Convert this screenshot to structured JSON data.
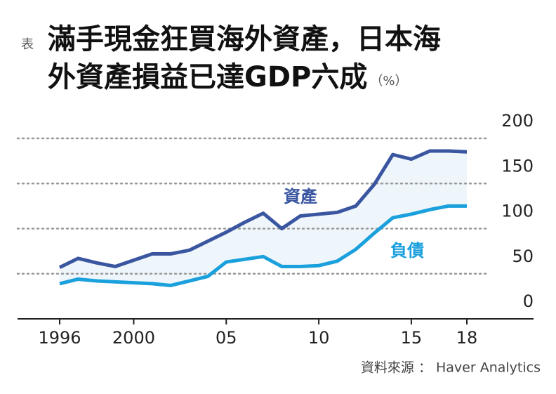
{
  "chart_data": {
    "type": "line",
    "label": "表",
    "title_lines": [
      "滿手現金狂買海外資產，日本海",
      "外資產損益已達GDP六成"
    ],
    "unit": "（%）",
    "source": "資料來源 ： Haver Analytics",
    "x": [
      1996,
      1997,
      1998,
      1999,
      2000,
      2001,
      2002,
      2003,
      2004,
      2005,
      2006,
      2007,
      2008,
      2009,
      2010,
      2011,
      2012,
      2013,
      2014,
      2015,
      2016,
      2017,
      2018
    ],
    "xlim": [
      1996,
      2018
    ],
    "xticks": [
      1996,
      2000,
      {
        "value": 2005,
        "label": "05"
      },
      {
        "value": 2010,
        "label": "10"
      },
      {
        "value": 2015,
        "label": "15"
      },
      {
        "value": 2018,
        "label": "18"
      }
    ],
    "ylim": [
      0,
      200
    ],
    "yticks": [
      0,
      50,
      100,
      150,
      200
    ],
    "grid": true,
    "fill_between": true,
    "fill_color": "#eef6fc",
    "series": [
      {
        "name": "資產",
        "color": "#3a56a0",
        "values": [
          57,
          67,
          62,
          58,
          65,
          72,
          72,
          76,
          86,
          96,
          107,
          117,
          100,
          114,
          116,
          118,
          125,
          149,
          182,
          177,
          186,
          186,
          185
        ]
      },
      {
        "name": "負債",
        "color": "#1aa0dc",
        "values": [
          39,
          44,
          42,
          41,
          40,
          39,
          37,
          42,
          47,
          63,
          66,
          69,
          58,
          58,
          59,
          64,
          77,
          95,
          112,
          116,
          121,
          125,
          125
        ]
      }
    ]
  }
}
